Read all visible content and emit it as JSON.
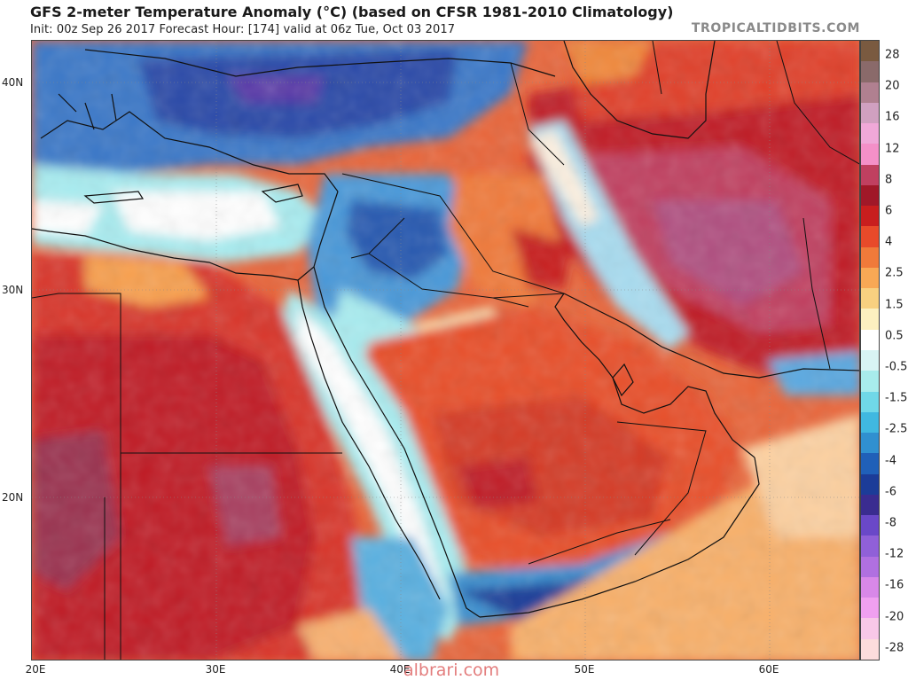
{
  "header": {
    "title": "GFS 2-meter Temperature Anomaly (°C) (based on CFSR 1981-2010 Climatology)",
    "subtitle": "Init: 00z Sep 26 2017   Forecast Hour: [174]   valid at 06z Tue, Oct 03 2017",
    "brand": "TROPICALTIDBITS.COM"
  },
  "axes": {
    "lat_ticks": [
      {
        "label": "40N",
        "value": 40
      },
      {
        "label": "30N",
        "value": 30
      },
      {
        "label": "20N",
        "value": 20
      }
    ],
    "lon_ticks": [
      {
        "label": "20E",
        "value": 20
      },
      {
        "label": "30E",
        "value": 30
      },
      {
        "label": "40E",
        "value": 40
      },
      {
        "label": "50E",
        "value": 50
      },
      {
        "label": "60E",
        "value": 60
      }
    ],
    "lon_range": [
      20,
      65
    ],
    "lat_range": [
      12.2,
      42.2
    ]
  },
  "colorbar": {
    "labels": [
      "28",
      "20",
      "16",
      "12",
      "8",
      "6",
      "4",
      "2.5",
      "1.5",
      "0.5",
      "-0.5",
      "-1.5",
      "-2.5",
      "-4",
      "-6",
      "-8",
      "-12",
      "-16",
      "-20",
      "-28"
    ],
    "colors": [
      "#7a5a40",
      "#8a6a6a",
      "#b08090",
      "#d0a0c0",
      "#f0a8d8",
      "#f490c8",
      "#c04060",
      "#a01828",
      "#c81e1e",
      "#e84a2a",
      "#f07a3a",
      "#f8a855",
      "#f8d080",
      "#fcf0c0",
      "#ffffff",
      "#d8f4f4",
      "#a8ecec",
      "#70d8e8",
      "#40b8e0",
      "#3090d0",
      "#2060b8",
      "#1c3c98",
      "#3a2c90",
      "#6a48c8",
      "#9060d8",
      "#b070e0",
      "#d888e8",
      "#f0a0f0",
      "#f8c8e8",
      "#fcdcdc"
    ]
  },
  "watermark": "albrari.com"
}
